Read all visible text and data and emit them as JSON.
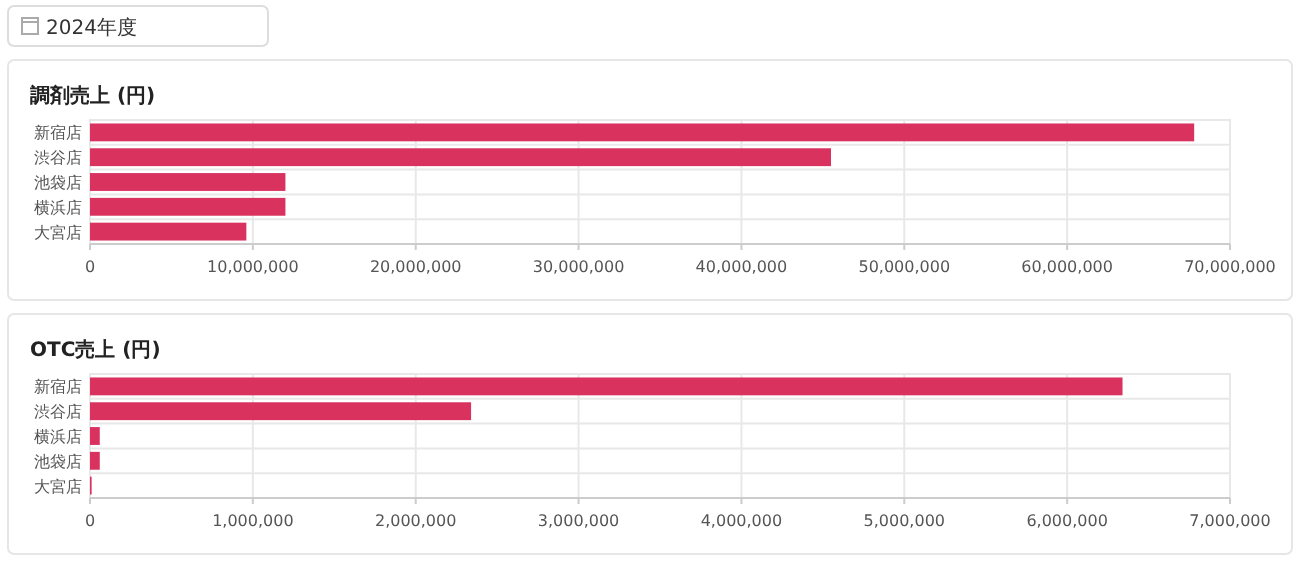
{
  "chart_data": [
    {
      "type": "other",
      "title": "2024年度"
    },
    {
      "type": "bar",
      "orientation": "horizontal",
      "title": "調剤売上 (円)",
      "categories": [
        "新宿店",
        "渋谷店",
        "池袋店",
        "横浜店",
        "大宮店"
      ],
      "values": [
        67800000,
        45500000,
        12000000,
        12000000,
        9600000
      ],
      "color": "#d9325f",
      "xlim": [
        0,
        70000000
      ],
      "xticks": [
        {
          "value": 0,
          "label": "0"
        },
        {
          "value": 10000000,
          "label": "10,000,000"
        },
        {
          "value": 20000000,
          "label": "20,000,000"
        },
        {
          "value": 30000000,
          "label": "30,000,000"
        },
        {
          "value": 40000000,
          "label": "40,000,000"
        },
        {
          "value": 50000000,
          "label": "50,000,000"
        },
        {
          "value": 60000000,
          "label": "60,000,000"
        },
        {
          "value": 70000000,
          "label": "70,000,000"
        }
      ],
      "grid": true
    },
    {
      "type": "bar",
      "orientation": "horizontal",
      "title": "OTC売上 (円)",
      "categories": [
        "新宿店",
        "渋谷店",
        "横浜店",
        "池袋店",
        "大宮店"
      ],
      "values": [
        6340000,
        2340000,
        60000,
        60000,
        10000
      ],
      "color": "#d9325f",
      "xlim": [
        0,
        7000000
      ],
      "xticks": [
        {
          "value": 0,
          "label": "0"
        },
        {
          "value": 1000000,
          "label": "1,000,000"
        },
        {
          "value": 2000000,
          "label": "2,000,000"
        },
        {
          "value": 3000000,
          "label": "3,000,000"
        },
        {
          "value": 4000000,
          "label": "4,000,000"
        },
        {
          "value": 5000000,
          "label": "5,000,000"
        },
        {
          "value": 6000000,
          "label": "6,000,000"
        },
        {
          "value": 7000000,
          "label": "7,000,000"
        }
      ],
      "grid": true
    }
  ]
}
